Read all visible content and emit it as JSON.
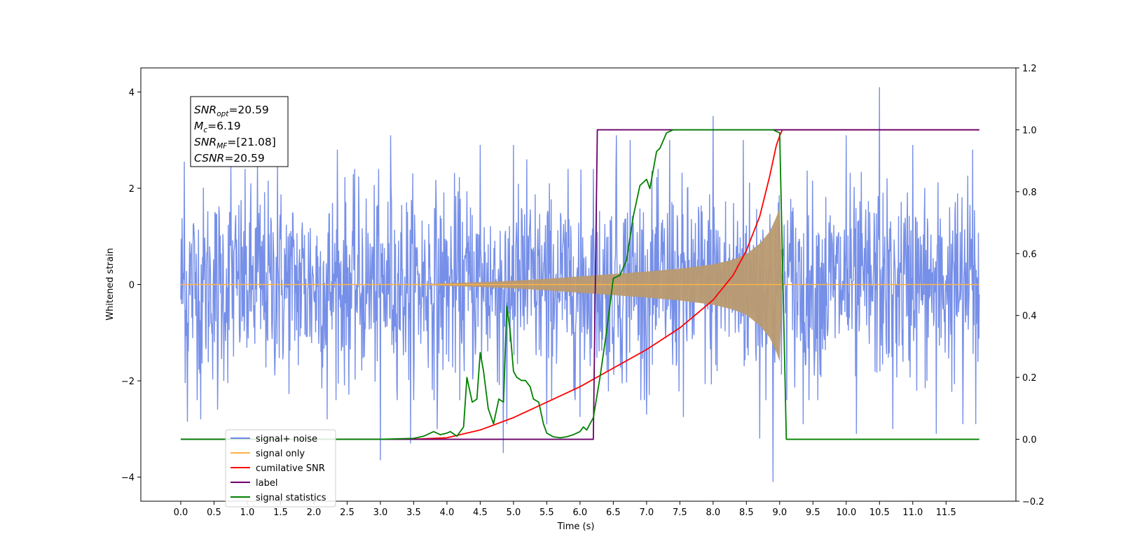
{
  "chart_data": {
    "type": "line",
    "xlabel": "Time (s)",
    "ylabel_left": "Whitened strain",
    "ylabel_right": "",
    "xlim": [
      -0.6,
      12.55
    ],
    "ylim_left": [
      -4.5,
      4.5
    ],
    "ylim_right": [
      -0.2,
      1.2
    ],
    "x_ticks": [
      "0.0",
      "0.5",
      "1.0",
      "1.5",
      "2.0",
      "2.5",
      "3.0",
      "3.5",
      "4.0",
      "4.5",
      "5.0",
      "5.5",
      "6.0",
      "6.5",
      "7.0",
      "7.5",
      "8.0",
      "8.5",
      "9.0",
      "9.5",
      "10.0",
      "10.5",
      "11.0",
      "11.5"
    ],
    "y_ticks_left": [
      "4",
      "2",
      "0",
      "−2",
      "−4"
    ],
    "y_ticks_right": [
      "1.2",
      "1.0",
      "0.8",
      "0.6",
      "0.4",
      "0.2",
      "0.0",
      "−0.2"
    ],
    "grid": false,
    "legend_position": "lower-left",
    "annotation": {
      "lines": [
        {
          "base": "SNR",
          "sub": "opt",
          "rest": "=20.59"
        },
        {
          "base": "M",
          "sub": "c",
          "rest": "=6.19"
        },
        {
          "base": "SNR",
          "sub": "MF",
          "rest": "=[21.08]"
        },
        {
          "base": "CSNR",
          "sub": "",
          "rest": "=20.59"
        }
      ]
    },
    "signal_noise": {
      "name": "signal+ noise",
      "color": "#6a86e6",
      "axis": "left",
      "x_range": [
        0.0,
        12.0
      ],
      "typical_amplitude": 1.6,
      "peaks": [
        [
          0.05,
          2.55
        ],
        [
          0.3,
          2.5
        ],
        [
          0.75,
          2.5
        ],
        [
          1.15,
          2.6
        ],
        [
          1.45,
          2.55
        ],
        [
          2.2,
          3.0
        ],
        [
          2.35,
          2.8
        ],
        [
          3.0,
          3.4
        ],
        [
          3.15,
          3.1
        ],
        [
          4.5,
          2.9
        ],
        [
          5.0,
          2.9
        ],
        [
          5.2,
          2.6
        ],
        [
          6.0,
          2.7
        ],
        [
          6.2,
          2.4
        ],
        [
          6.55,
          3.1
        ],
        [
          6.75,
          3.0
        ],
        [
          7.35,
          3.0
        ],
        [
          8.0,
          3.5
        ],
        [
          8.45,
          3.0
        ],
        [
          10.0,
          3.1
        ],
        [
          10.5,
          4.1
        ],
        [
          11.0,
          2.9
        ],
        [
          11.35,
          2.8
        ],
        [
          11.9,
          2.8
        ]
      ],
      "troughs": [
        [
          0.1,
          -2.85
        ],
        [
          0.3,
          -2.8
        ],
        [
          0.55,
          -2.6
        ],
        [
          2.2,
          -2.8
        ],
        [
          3.0,
          -3.65
        ],
        [
          3.45,
          -3.3
        ],
        [
          3.85,
          -3.0
        ],
        [
          4.85,
          -3.5
        ],
        [
          4.9,
          -2.9
        ],
        [
          5.5,
          -2.9
        ],
        [
          6.0,
          -2.75
        ],
        [
          7.0,
          -2.7
        ],
        [
          7.55,
          -2.75
        ],
        [
          8.7,
          -3.2
        ],
        [
          8.9,
          -4.1
        ],
        [
          9.35,
          -2.9
        ],
        [
          10.15,
          -3.1
        ],
        [
          10.7,
          -3.0
        ],
        [
          11.35,
          -3.1
        ],
        [
          11.75,
          -2.9
        ],
        [
          11.95,
          -2.9
        ]
      ]
    },
    "signal_only": {
      "name": "signal only",
      "color": "#ffb347",
      "axis": "left",
      "envelope": [
        [
          0.0,
          0.0
        ],
        [
          3.5,
          0.0
        ],
        [
          4.0,
          0.03
        ],
        [
          4.5,
          0.05
        ],
        [
          5.0,
          0.08
        ],
        [
          5.5,
          0.12
        ],
        [
          6.0,
          0.17
        ],
        [
          6.5,
          0.22
        ],
        [
          7.0,
          0.27
        ],
        [
          7.5,
          0.33
        ],
        [
          8.0,
          0.42
        ],
        [
          8.3,
          0.52
        ],
        [
          8.5,
          0.63
        ],
        [
          8.7,
          0.85
        ],
        [
          8.85,
          1.1
        ],
        [
          8.95,
          1.4
        ],
        [
          9.0,
          1.6
        ],
        [
          9.04,
          0.0
        ],
        [
          12.0,
          0.0
        ]
      ]
    },
    "filled_signal": {
      "color": "#b99a70"
    },
    "cumulative_snr": {
      "name": "cumilative SNR",
      "color": "#ff0000",
      "axis": "right",
      "points": [
        [
          0.0,
          0.0
        ],
        [
          3.5,
          0.0
        ],
        [
          4.0,
          0.005
        ],
        [
          4.5,
          0.03
        ],
        [
          5.0,
          0.07
        ],
        [
          5.5,
          0.12
        ],
        [
          6.0,
          0.17
        ],
        [
          6.5,
          0.23
        ],
        [
          7.0,
          0.29
        ],
        [
          7.5,
          0.36
        ],
        [
          8.0,
          0.45
        ],
        [
          8.3,
          0.53
        ],
        [
          8.5,
          0.61
        ],
        [
          8.7,
          0.72
        ],
        [
          8.85,
          0.85
        ],
        [
          8.95,
          0.95
        ],
        [
          9.0,
          0.98
        ],
        [
          9.04,
          1.0
        ],
        [
          12.0,
          1.0
        ]
      ]
    },
    "label": {
      "name": "label",
      "color": "#6a006a",
      "axis": "right",
      "points": [
        [
          0.0,
          0.0
        ],
        [
          6.2,
          0.0
        ],
        [
          6.26,
          1.0
        ],
        [
          8.98,
          1.0
        ],
        [
          9.02,
          1.0
        ],
        [
          12.0,
          1.0
        ]
      ]
    },
    "signal_statistics": {
      "name": "signal statistics",
      "color": "#008000",
      "axis": "right",
      "points": [
        [
          0.0,
          0.0
        ],
        [
          3.0,
          0.0
        ],
        [
          3.5,
          0.003
        ],
        [
          3.65,
          0.01
        ],
        [
          3.8,
          0.025
        ],
        [
          3.9,
          0.015
        ],
        [
          4.0,
          0.02
        ],
        [
          4.05,
          0.025
        ],
        [
          4.15,
          0.01
        ],
        [
          4.25,
          0.04
        ],
        [
          4.3,
          0.2
        ],
        [
          4.38,
          0.12
        ],
        [
          4.45,
          0.13
        ],
        [
          4.5,
          0.28
        ],
        [
          4.55,
          0.22
        ],
        [
          4.62,
          0.1
        ],
        [
          4.7,
          0.05
        ],
        [
          4.78,
          0.13
        ],
        [
          4.85,
          0.12
        ],
        [
          4.9,
          0.43
        ],
        [
          4.95,
          0.35
        ],
        [
          5.0,
          0.22
        ],
        [
          5.05,
          0.2
        ],
        [
          5.12,
          0.19
        ],
        [
          5.18,
          0.19
        ],
        [
          5.25,
          0.17
        ],
        [
          5.3,
          0.13
        ],
        [
          5.38,
          0.12
        ],
        [
          5.45,
          0.05
        ],
        [
          5.5,
          0.02
        ],
        [
          5.6,
          0.008
        ],
        [
          5.7,
          0.005
        ],
        [
          5.8,
          0.008
        ],
        [
          5.9,
          0.015
        ],
        [
          6.0,
          0.025
        ],
        [
          6.05,
          0.04
        ],
        [
          6.1,
          0.03
        ],
        [
          6.2,
          0.07
        ],
        [
          6.3,
          0.2
        ],
        [
          6.4,
          0.35
        ],
        [
          6.5,
          0.52
        ],
        [
          6.6,
          0.53
        ],
        [
          6.7,
          0.58
        ],
        [
          6.8,
          0.72
        ],
        [
          6.9,
          0.82
        ],
        [
          7.0,
          0.84
        ],
        [
          7.05,
          0.81
        ],
        [
          7.15,
          0.93
        ],
        [
          7.2,
          0.94
        ],
        [
          7.3,
          0.99
        ],
        [
          7.4,
          1.0
        ],
        [
          8.9,
          1.0
        ],
        [
          9.0,
          0.99
        ],
        [
          9.05,
          0.5
        ],
        [
          9.1,
          0.0
        ],
        [
          12.0,
          0.0
        ]
      ]
    }
  }
}
